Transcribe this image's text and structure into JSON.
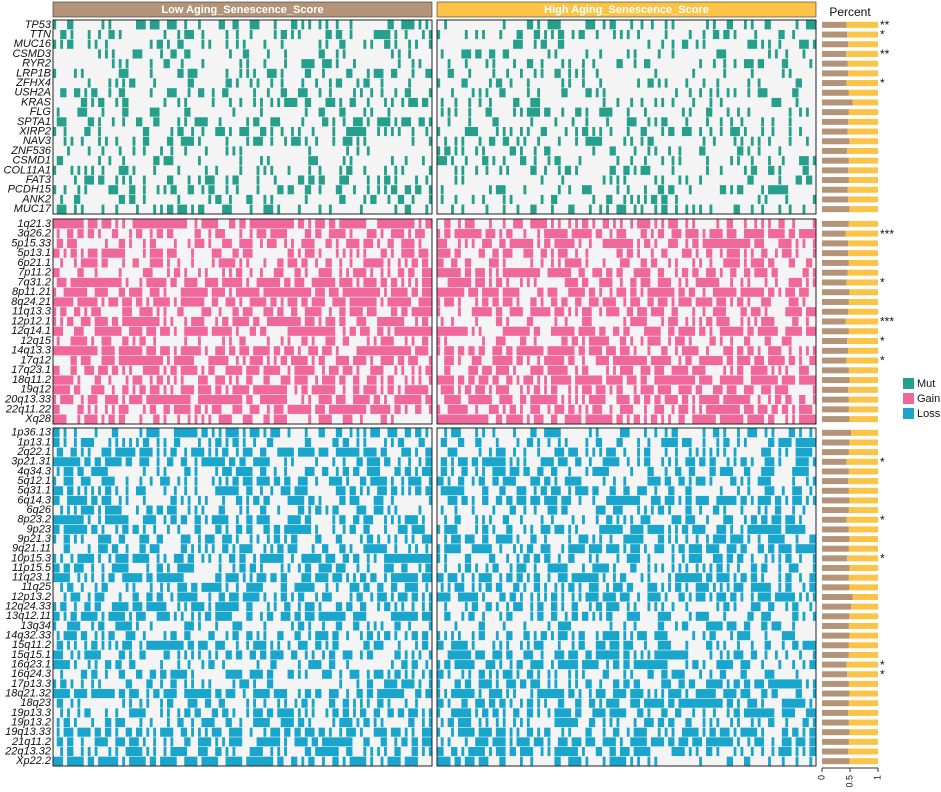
{
  "chart_data": {
    "type": "oncoplot",
    "groups": [
      "Low Aging_Senescence_Score",
      "High Aging_Senescence_Score"
    ],
    "group_colors": [
      "#b39478",
      "#fbc447"
    ],
    "percent_title": "Percent",
    "xlim": [
      0,
      1
    ],
    "xticks": [
      0,
      0.5,
      1
    ],
    "sections": [
      {
        "name": "Mut",
        "color": "#26a08c",
        "rows": [
          "TP53",
          "TTN",
          "MUC16",
          "CSMD3",
          "RYR2",
          "LRP1B",
          "ZFHX4",
          "USH2A",
          "KRAS",
          "FLG",
          "SPTA1",
          "XIRP2",
          "NAV3",
          "ZNF536",
          "CSMD1",
          "COL11A1",
          "FAT3",
          "PCDH15",
          "ANK2",
          "MUC17"
        ],
        "percent_low": [
          0.44,
          0.45,
          0.47,
          0.43,
          0.46,
          0.47,
          0.44,
          0.48,
          0.55,
          0.48,
          0.47,
          0.46,
          0.49,
          0.45,
          0.48,
          0.47,
          0.48,
          0.46,
          0.47,
          0.49
        ],
        "significance": [
          "**",
          "*",
          null,
          "**",
          null,
          null,
          "*",
          null,
          null,
          null,
          null,
          null,
          null,
          null,
          null,
          null,
          null,
          null,
          null,
          null
        ]
      },
      {
        "name": "Gain",
        "color": "#f0679b",
        "rows": [
          "1q21.3",
          "3q26.2",
          "5p15.33",
          "5p13.1",
          "6p21.1",
          "7p11.2",
          "7q31.2",
          "8p11.21",
          "8q24.21",
          "11q13.3",
          "12p12.1",
          "12q14.1",
          "12q15",
          "14q13.3",
          "17q12",
          "17q23.1",
          "18q11.2",
          "19q12",
          "20q13.33",
          "22q11.22",
          "Xq28"
        ],
        "percent_low": [
          0.48,
          0.42,
          0.47,
          0.47,
          0.48,
          0.46,
          0.44,
          0.49,
          0.48,
          0.47,
          0.42,
          0.48,
          0.45,
          0.47,
          0.44,
          0.48,
          0.49,
          0.47,
          0.48,
          0.48,
          0.49
        ],
        "significance": [
          null,
          "***",
          null,
          null,
          null,
          null,
          "*",
          null,
          null,
          null,
          "***",
          null,
          "*",
          null,
          "*",
          null,
          null,
          null,
          null,
          null,
          null
        ]
      },
      {
        "name": "Loss",
        "color": "#1aa6cc",
        "rows": [
          "1p36.13",
          "1p13.1",
          "2q22.1",
          "3p21.31",
          "4q34.3",
          "5q12.1",
          "5q31.1",
          "6q14.3",
          "6q26",
          "8p23.2",
          "9p23",
          "9p21.3",
          "9q21.11",
          "10p15.3",
          "11p15.5",
          "11q23.1",
          "11q25",
          "12p13.2",
          "12q24.33",
          "13q12.11",
          "13q34",
          "14q32.33",
          "15q11.2",
          "15q15.1",
          "16q23.1",
          "16q24.3",
          "17p13.3",
          "18q21.32",
          "18q23",
          "19p13.3",
          "19p13.2",
          "19q13.33",
          "21q11.2",
          "22q13.32",
          "Xp22.2"
        ],
        "percent_low": [
          0.52,
          0.49,
          0.48,
          0.44,
          0.48,
          0.47,
          0.48,
          0.49,
          0.48,
          0.44,
          0.48,
          0.49,
          0.48,
          0.45,
          0.49,
          0.48,
          0.49,
          0.55,
          0.52,
          0.49,
          0.48,
          0.49,
          0.48,
          0.48,
          0.44,
          0.45,
          0.48,
          0.49,
          0.48,
          0.47,
          0.48,
          0.49,
          0.48,
          0.47,
          0.49
        ],
        "significance": [
          null,
          null,
          null,
          "*",
          null,
          null,
          null,
          null,
          null,
          "*",
          null,
          null,
          null,
          "*",
          null,
          null,
          null,
          null,
          null,
          null,
          null,
          null,
          null,
          null,
          "*",
          "*",
          null,
          null,
          null,
          null,
          null,
          null,
          null,
          null,
          null
        ]
      }
    ]
  }
}
